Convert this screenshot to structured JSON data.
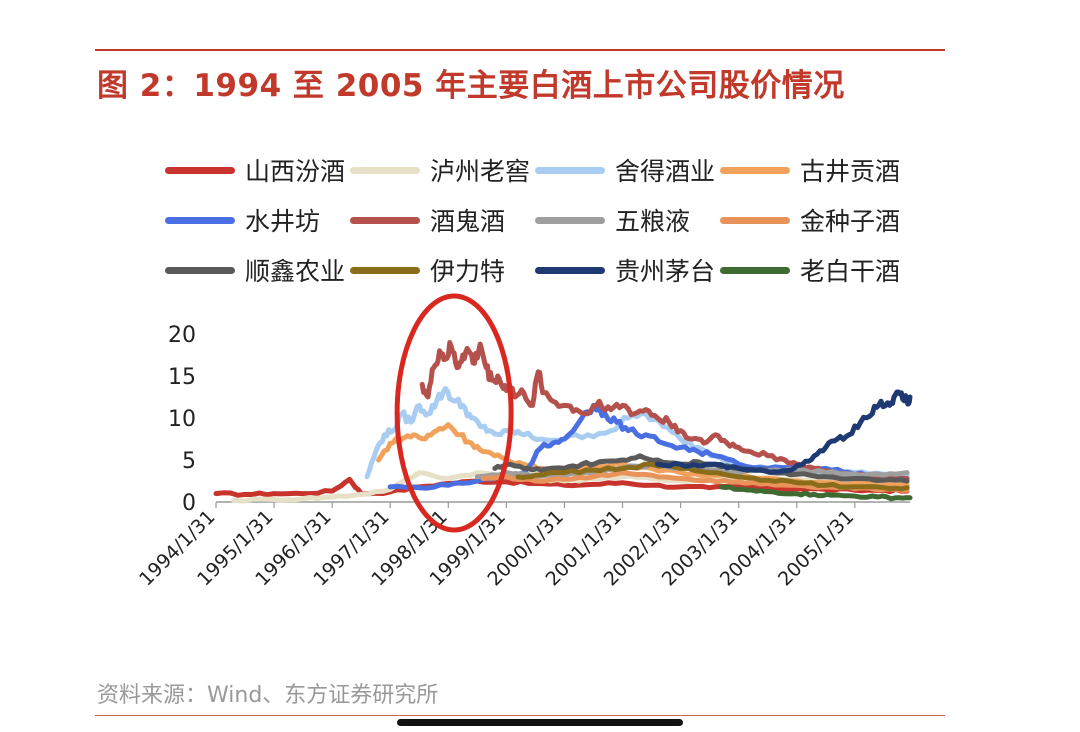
{
  "header": {
    "title": "图 2：1994 至 2005 年主要白酒上市公司股价情况",
    "source": "资料来源：Wind、东方证券研究所"
  },
  "chart_data": {
    "type": "line",
    "title": "图 2：1994 至 2005 年主要白酒上市公司股价情况",
    "xlabel": "",
    "ylabel": "",
    "ylim": [
      0,
      20
    ],
    "yticks": [
      0,
      5,
      10,
      15,
      20
    ],
    "xticks": [
      "1994/1/31",
      "1995/1/31",
      "1996/1/31",
      "1997/1/31",
      "1998/1/31",
      "1999/1/31",
      "2000/1/31",
      "2001/1/31",
      "2002/1/31",
      "2003/1/31",
      "2004/1/31",
      "2005/1/31"
    ],
    "grid": false,
    "legend_placement": "top",
    "annotation": "red ellipse highlighting 1997-1998 peak",
    "series": [
      {
        "name": "山西汾酒",
        "color": "#c8342b",
        "points": [
          [
            1994.0,
            1.0
          ],
          [
            1994.5,
            0.9
          ],
          [
            1995.0,
            1.0
          ],
          [
            1995.5,
            1.0
          ],
          [
            1996.0,
            1.3
          ],
          [
            1996.3,
            2.7
          ],
          [
            1996.5,
            1.0
          ],
          [
            1997.0,
            1.2
          ],
          [
            1997.5,
            1.8
          ],
          [
            1998.0,
            2.2
          ],
          [
            1998.5,
            2.5
          ],
          [
            1999.0,
            2.4
          ],
          [
            1999.5,
            2.2
          ],
          [
            2000.0,
            2.0
          ],
          [
            2000.5,
            2.1
          ],
          [
            2001.0,
            2.3
          ],
          [
            2001.5,
            2.0
          ],
          [
            2002.0,
            1.8
          ],
          [
            2002.5,
            1.7
          ],
          [
            2003.0,
            1.8
          ],
          [
            2003.5,
            1.7
          ],
          [
            2004.0,
            1.6
          ],
          [
            2004.5,
            1.5
          ],
          [
            2005.0,
            1.4
          ],
          [
            2005.5,
            1.4
          ],
          [
            2005.9,
            1.3
          ]
        ]
      },
      {
        "name": "泸州老窖",
        "color": "#e6e0c7",
        "points": [
          [
            1994.3,
            0.2
          ],
          [
            1995.0,
            0.3
          ],
          [
            1995.5,
            0.4
          ],
          [
            1996.0,
            0.6
          ],
          [
            1996.5,
            0.9
          ],
          [
            1997.0,
            1.5
          ],
          [
            1997.5,
            3.5
          ],
          [
            1998.0,
            2.8
          ],
          [
            1998.5,
            3.5
          ],
          [
            1999.0,
            3.0
          ],
          [
            1999.5,
            2.8
          ],
          [
            2000.0,
            2.5
          ],
          [
            2000.5,
            2.8
          ],
          [
            2001.0,
            3.0
          ],
          [
            2001.5,
            2.8
          ],
          [
            2002.0,
            2.5
          ],
          [
            2002.5,
            2.7
          ],
          [
            2003.0,
            2.8
          ],
          [
            2003.5,
            2.9
          ],
          [
            2004.0,
            2.7
          ],
          [
            2004.5,
            2.6
          ],
          [
            2005.0,
            2.4
          ],
          [
            2005.5,
            2.3
          ],
          [
            2005.9,
            2.2
          ]
        ]
      },
      {
        "name": "舍得酒业",
        "color": "#a9cdf0",
        "points": [
          [
            1996.6,
            3.0
          ],
          [
            1996.75,
            6.0
          ],
          [
            1996.9,
            8.0
          ],
          [
            1997.05,
            8.5
          ],
          [
            1997.2,
            10.5
          ],
          [
            1997.35,
            9.5
          ],
          [
            1997.5,
            11.5
          ],
          [
            1997.65,
            10.5
          ],
          [
            1997.8,
            12.0
          ],
          [
            1997.95,
            13.5
          ],
          [
            1998.1,
            12.0
          ],
          [
            1998.25,
            11.5
          ],
          [
            1998.4,
            10.0
          ],
          [
            1998.55,
            9.0
          ],
          [
            1998.7,
            8.5
          ],
          [
            1998.9,
            8.0
          ],
          [
            1999.1,
            8.5
          ],
          [
            1999.3,
            8.0
          ],
          [
            1999.6,
            7.5
          ],
          [
            2000.0,
            7.5
          ],
          [
            2000.4,
            8.0
          ],
          [
            2000.8,
            8.5
          ],
          [
            2001.1,
            10.0
          ],
          [
            2001.4,
            10.5
          ],
          [
            2001.7,
            9.0
          ],
          [
            2002.0,
            7.5
          ],
          [
            2002.3,
            6.5
          ],
          [
            2002.6,
            5.5
          ],
          [
            2003.0,
            4.5
          ],
          [
            2003.5,
            4.0
          ],
          [
            2004.0,
            3.8
          ],
          [
            2004.5,
            3.5
          ],
          [
            2005.0,
            3.5
          ],
          [
            2005.5,
            3.3
          ],
          [
            2005.9,
            3.2
          ]
        ]
      },
      {
        "name": "古井贡酒",
        "color": "#f0a25c",
        "points": [
          [
            1996.8,
            5.0
          ],
          [
            1997.0,
            7.0
          ],
          [
            1997.2,
            7.5
          ],
          [
            1997.4,
            8.0
          ],
          [
            1997.6,
            7.5
          ],
          [
            1997.8,
            8.5
          ],
          [
            1998.0,
            9.2
          ],
          [
            1998.2,
            8.0
          ],
          [
            1998.4,
            7.0
          ],
          [
            1998.6,
            6.0
          ],
          [
            1998.8,
            5.5
          ],
          [
            1999.0,
            5.0
          ],
          [
            1999.3,
            4.5
          ],
          [
            1999.6,
            4.0
          ],
          [
            2000.0,
            4.0
          ],
          [
            2000.5,
            4.2
          ],
          [
            2001.0,
            4.5
          ],
          [
            2001.5,
            4.0
          ],
          [
            2002.0,
            3.5
          ],
          [
            2002.5,
            3.2
          ],
          [
            2003.0,
            3.0
          ],
          [
            2003.5,
            2.8
          ],
          [
            2004.0,
            2.5
          ],
          [
            2004.5,
            2.3
          ],
          [
            2005.0,
            2.2
          ],
          [
            2005.5,
            2.0
          ],
          [
            2005.9,
            2.0
          ]
        ]
      },
      {
        "name": "水井坊",
        "color": "#4a6fe3",
        "points": [
          [
            1997.0,
            1.8
          ],
          [
            1997.5,
            1.7
          ],
          [
            1998.0,
            2.0
          ],
          [
            1998.5,
            2.5
          ],
          [
            1999.0,
            3.0
          ],
          [
            1999.3,
            3.5
          ],
          [
            1999.6,
            6.5
          ],
          [
            1999.8,
            7.0
          ],
          [
            2000.0,
            7.5
          ],
          [
            2000.3,
            10.0
          ],
          [
            2000.5,
            11.5
          ],
          [
            2000.7,
            10.5
          ],
          [
            2000.9,
            9.5
          ],
          [
            2001.1,
            8.5
          ],
          [
            2001.4,
            8.0
          ],
          [
            2001.7,
            7.0
          ],
          [
            2002.0,
            6.5
          ],
          [
            2002.3,
            6.0
          ],
          [
            2002.6,
            5.5
          ],
          [
            2003.0,
            4.5
          ],
          [
            2003.5,
            4.0
          ],
          [
            2004.0,
            4.2
          ],
          [
            2004.5,
            4.0
          ],
          [
            2004.9,
            3.5
          ],
          [
            2005.3,
            3.2
          ],
          [
            2005.9,
            2.8
          ]
        ]
      },
      {
        "name": "酒鬼酒",
        "color": "#b5514c",
        "points": [
          [
            1997.55,
            14.0
          ],
          [
            1997.65,
            12.5
          ],
          [
            1997.75,
            16.0
          ],
          [
            1997.85,
            18.0
          ],
          [
            1997.95,
            17.0
          ],
          [
            1998.05,
            18.5
          ],
          [
            1998.15,
            16.0
          ],
          [
            1998.25,
            17.5
          ],
          [
            1998.35,
            18.0
          ],
          [
            1998.45,
            16.5
          ],
          [
            1998.55,
            18.8
          ],
          [
            1998.65,
            16.0
          ],
          [
            1998.75,
            14.5
          ],
          [
            1998.85,
            15.0
          ],
          [
            1998.95,
            13.5
          ],
          [
            1999.05,
            14.0
          ],
          [
            1999.15,
            12.5
          ],
          [
            1999.3,
            13.0
          ],
          [
            1999.45,
            11.5
          ],
          [
            1999.55,
            15.5
          ],
          [
            1999.65,
            13.0
          ],
          [
            1999.8,
            12.0
          ],
          [
            2000.0,
            11.5
          ],
          [
            2000.2,
            11.0
          ],
          [
            2000.4,
            10.5
          ],
          [
            2000.6,
            12.0
          ],
          [
            2000.8,
            11.0
          ],
          [
            2001.0,
            11.5
          ],
          [
            2001.2,
            10.5
          ],
          [
            2001.4,
            11.0
          ],
          [
            2001.6,
            10.0
          ],
          [
            2001.8,
            9.5
          ],
          [
            2002.0,
            8.5
          ],
          [
            2002.2,
            7.5
          ],
          [
            2002.4,
            7.0
          ],
          [
            2002.6,
            8.0
          ],
          [
            2002.8,
            7.0
          ],
          [
            2003.0,
            6.5
          ],
          [
            2003.2,
            6.0
          ],
          [
            2003.5,
            5.5
          ],
          [
            2003.8,
            5.0
          ],
          [
            2004.0,
            4.5
          ],
          [
            2004.3,
            4.0
          ],
          [
            2004.6,
            3.5
          ],
          [
            2005.0,
            3.2
          ],
          [
            2005.5,
            3.0
          ],
          [
            2005.9,
            2.8
          ]
        ]
      },
      {
        "name": "五粮液",
        "color": "#9e9e9e",
        "points": [
          [
            1998.5,
            3.0
          ],
          [
            1999.0,
            3.5
          ],
          [
            1999.5,
            3.0
          ],
          [
            2000.0,
            3.2
          ],
          [
            2000.5,
            3.5
          ],
          [
            2001.0,
            4.0
          ],
          [
            2001.5,
            4.5
          ],
          [
            2002.0,
            4.0
          ],
          [
            2002.5,
            3.8
          ],
          [
            2003.0,
            3.5
          ],
          [
            2003.5,
            3.7
          ],
          [
            2004.0,
            3.8
          ],
          [
            2004.5,
            3.5
          ],
          [
            2005.0,
            3.3
          ],
          [
            2005.5,
            3.2
          ],
          [
            2005.9,
            3.5
          ]
        ]
      },
      {
        "name": "金种子酒",
        "color": "#e8935a",
        "points": [
          [
            1998.6,
            2.8
          ],
          [
            1999.0,
            3.0
          ],
          [
            1999.5,
            2.5
          ],
          [
            2000.0,
            2.7
          ],
          [
            2000.5,
            3.0
          ],
          [
            2001.0,
            3.5
          ],
          [
            2001.5,
            3.2
          ],
          [
            2002.0,
            2.8
          ],
          [
            2002.5,
            2.6
          ],
          [
            2003.0,
            2.4
          ],
          [
            2003.5,
            2.2
          ],
          [
            2004.0,
            2.0
          ],
          [
            2004.5,
            1.8
          ],
          [
            2005.0,
            1.6
          ],
          [
            2005.5,
            1.5
          ],
          [
            2005.9,
            1.4
          ]
        ]
      },
      {
        "name": "顺鑫农业",
        "color": "#5a5a5a",
        "points": [
          [
            1998.8,
            4.0
          ],
          [
            1999.0,
            4.5
          ],
          [
            1999.3,
            4.0
          ],
          [
            1999.6,
            3.8
          ],
          [
            2000.0,
            4.0
          ],
          [
            2000.3,
            4.5
          ],
          [
            2000.6,
            4.8
          ],
          [
            2001.0,
            5.0
          ],
          [
            2001.3,
            5.5
          ],
          [
            2001.6,
            5.0
          ],
          [
            2002.0,
            4.5
          ],
          [
            2002.3,
            4.8
          ],
          [
            2002.6,
            4.5
          ],
          [
            2003.0,
            4.0
          ],
          [
            2003.3,
            3.8
          ],
          [
            2003.6,
            3.5
          ],
          [
            2004.0,
            3.3
          ],
          [
            2004.5,
            3.0
          ],
          [
            2005.0,
            2.8
          ],
          [
            2005.5,
            2.6
          ],
          [
            2005.9,
            2.5
          ]
        ]
      },
      {
        "name": "伊力特",
        "color": "#8a6d1b",
        "points": [
          [
            1999.2,
            3.0
          ],
          [
            1999.5,
            3.2
          ],
          [
            2000.0,
            3.5
          ],
          [
            2000.5,
            3.8
          ],
          [
            2001.0,
            4.0
          ],
          [
            2001.5,
            4.5
          ],
          [
            2002.0,
            4.0
          ],
          [
            2002.5,
            3.5
          ],
          [
            2003.0,
            3.0
          ],
          [
            2003.5,
            2.6
          ],
          [
            2004.0,
            2.3
          ],
          [
            2004.5,
            2.0
          ],
          [
            2005.0,
            1.8
          ],
          [
            2005.5,
            1.7
          ],
          [
            2005.9,
            1.7
          ]
        ]
      },
      {
        "name": "贵州茅台",
        "color": "#1f3a73",
        "points": [
          [
            2001.6,
            4.5
          ],
          [
            2002.0,
            4.5
          ],
          [
            2002.3,
            4.3
          ],
          [
            2002.6,
            4.5
          ],
          [
            2003.0,
            4.0
          ],
          [
            2003.3,
            3.8
          ],
          [
            2003.6,
            3.6
          ],
          [
            2003.9,
            3.8
          ],
          [
            2004.1,
            4.5
          ],
          [
            2004.3,
            5.5
          ],
          [
            2004.5,
            6.5
          ],
          [
            2004.7,
            7.5
          ],
          [
            2004.9,
            8.0
          ],
          [
            2005.1,
            9.5
          ],
          [
            2005.3,
            10.5
          ],
          [
            2005.45,
            12.0
          ],
          [
            2005.6,
            11.5
          ],
          [
            2005.7,
            12.8
          ],
          [
            2005.8,
            13.0
          ],
          [
            2005.9,
            12.0
          ],
          [
            2005.95,
            12.5
          ]
        ]
      },
      {
        "name": "老白干酒",
        "color": "#3f6b33",
        "points": [
          [
            2002.7,
            1.8
          ],
          [
            2003.0,
            1.5
          ],
          [
            2003.3,
            1.3
          ],
          [
            2003.6,
            1.2
          ],
          [
            2004.0,
            1.0
          ],
          [
            2004.3,
            0.9
          ],
          [
            2004.6,
            0.8
          ],
          [
            2005.0,
            0.7
          ],
          [
            2005.4,
            0.6
          ],
          [
            2005.7,
            0.5
          ],
          [
            2005.95,
            0.5
          ]
        ]
      }
    ]
  }
}
